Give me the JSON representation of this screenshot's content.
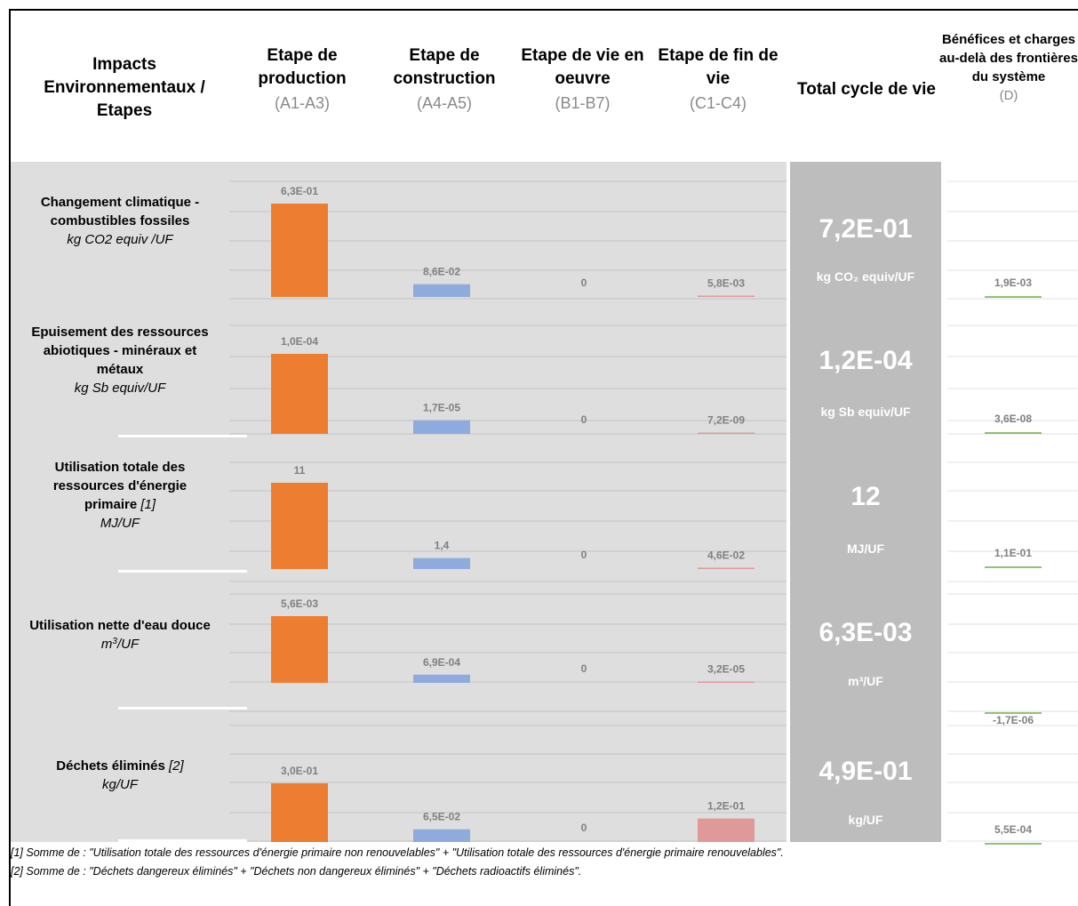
{
  "header": {
    "impacts": "Impacts Environnementaux / Etapes",
    "stages": [
      {
        "title": "Etape de production",
        "code": "(A1-A3)"
      },
      {
        "title": "Etape de construction",
        "code": "(A4-A5)"
      },
      {
        "title": "Etape de vie en oeuvre",
        "code": "(B1-B7)"
      },
      {
        "title": "Etape de fin de vie",
        "code": "(C1-C4)"
      }
    ],
    "total": "Total cycle de vie",
    "benefits": {
      "title": "Bénéfices et charges au-delà des frontières du système",
      "code": "(D)"
    }
  },
  "colors": {
    "production": "#ED7D31",
    "construction": "#8FAADC",
    "end_of_life": "#E06666",
    "end_of_life_bar": "#E09999",
    "benefits_line": "#70AD47",
    "panel_bg": "#DEDEDE",
    "total_bg": "#BDBDBD"
  },
  "chart_data": {
    "type": "bar",
    "categories": [
      "A1-A3",
      "A4-A5",
      "B1-B7",
      "C1-C4",
      "Total",
      "D"
    ],
    "indicators": [
      {
        "name": "Changement climatique - combustibles fossiles",
        "unit": "kg CO2 equiv /UF",
        "values": [
          0.63,
          0.086,
          0,
          0.0058
        ],
        "labels": [
          "6,3E-01",
          "8,6E-02",
          "0",
          "5,8E-03"
        ],
        "total": "7,2E-01",
        "total_unit": "kg CO₂ equiv/UF",
        "D": 0.0019,
        "D_label": "1,9E-03"
      },
      {
        "name": "Epuisement des ressources abiotiques - minéraux et métaux",
        "unit": "kg Sb equiv/UF",
        "values": [
          0.0001,
          1.7e-05,
          0,
          7.2e-09
        ],
        "labels": [
          "1,0E-04",
          "1,7E-05",
          "0",
          "7,2E-09"
        ],
        "total": "1,2E-04",
        "total_unit": "kg Sb equiv/UF",
        "D": 3.6e-08,
        "D_label": "3,6E-08"
      },
      {
        "name": "Utilisation totale des ressources d'énergie primaire",
        "note": "[1]",
        "unit": "MJ/UF",
        "values": [
          11,
          1.4,
          0,
          0.046
        ],
        "labels": [
          "11",
          "1,4",
          "0",
          "4,6E-02"
        ],
        "total": "12",
        "total_unit": "MJ/UF",
        "D": 0.11,
        "D_label": "1,1E-01"
      },
      {
        "name": "Utilisation nette d'eau douce",
        "unit": "m³/UF",
        "unit_base": "m",
        "unit_exp": "3",
        "unit_rest": "/UF",
        "values": [
          0.0056,
          0.00069,
          0,
          3.2e-05
        ],
        "labels": [
          "5,6E-03",
          "6,9E-04",
          "0",
          "3,2E-05"
        ],
        "total": "6,3E-03",
        "total_unit": "m³/UF",
        "D": -1.7e-06,
        "D_label": "-1,7E-06"
      },
      {
        "name": "Déchets éliminés",
        "note": "[2]",
        "unit": "kg/UF",
        "values": [
          0.3,
          0.065,
          0,
          0.12
        ],
        "labels": [
          "3,0E-01",
          "6,5E-02",
          "0",
          "1,2E-01"
        ],
        "total": "4,9E-01",
        "total_unit": "kg/UF",
        "D": 0.00055,
        "D_label": "5,5E-04"
      }
    ]
  },
  "footnotes": [
    "[1] Somme de : \"Utilisation totale des ressources d'énergie primaire non renouvelables\" + \"Utilisation totale des ressources d'énergie primaire renouvelables\".",
    "[2] Somme de : \"Déchets dangereux éliminés\" + \"Déchets non dangereux éliminés\" + \"Déchets radioactifs éliminés\"."
  ]
}
